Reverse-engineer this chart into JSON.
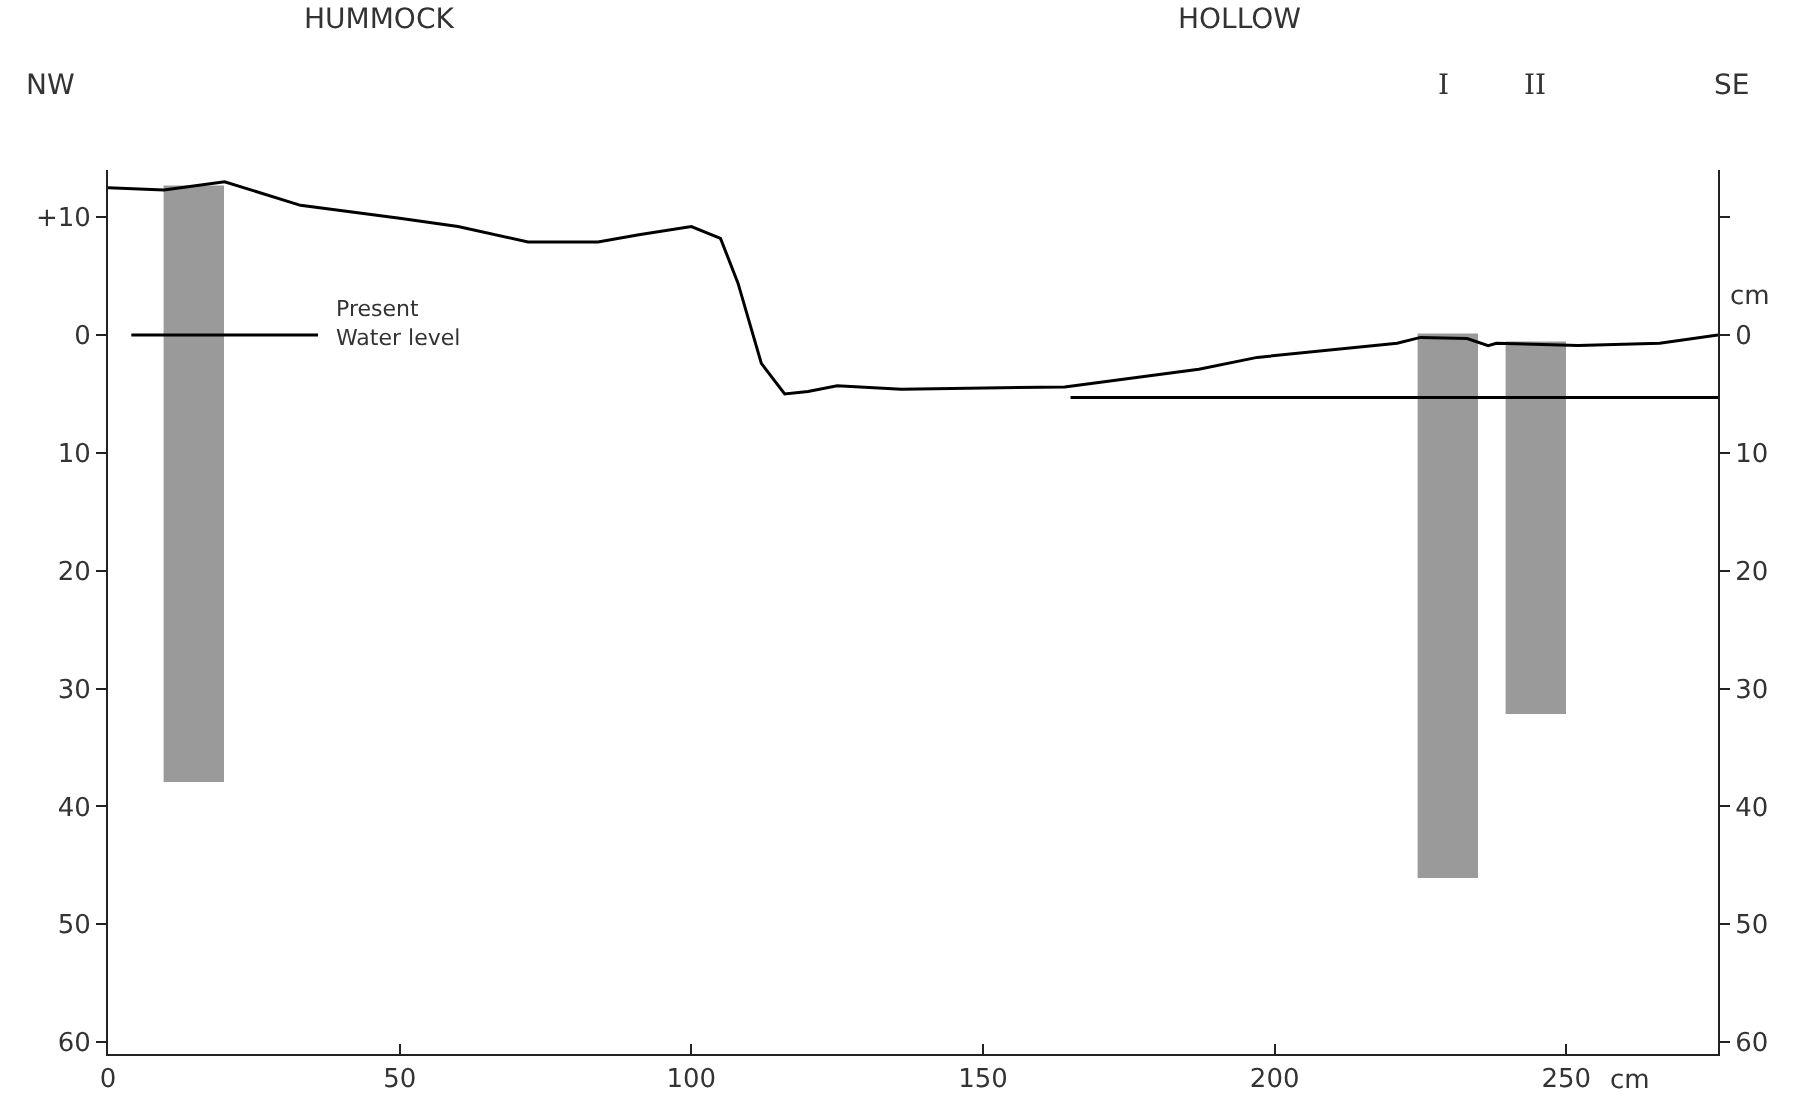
{
  "chart_data": {
    "type": "line",
    "xlabel": "cm",
    "y2label": "cm",
    "xlim": [
      0,
      276
    ],
    "xticks": [
      0,
      50,
      100,
      150,
      200,
      250
    ],
    "ylim": [
      61,
      -14
    ],
    "yticks": [
      {
        "value": -10,
        "label": "+10"
      },
      0,
      10,
      20,
      30,
      40,
      50,
      60
    ],
    "y2lim": [
      61,
      -14
    ],
    "y2ticks": [
      {
        "value": -10,
        "label": null
      },
      0,
      10,
      20,
      30,
      40,
      50,
      60
    ],
    "grid": false,
    "marker": "none",
    "series": [
      {
        "color": "#000000",
        "x": [
          0,
          9.6,
          20,
          33,
          50,
          60,
          72,
          84,
          91,
          100,
          105,
          108,
          112,
          116,
          120,
          125,
          136,
          164,
          187,
          197,
          221,
          225,
          233,
          236.6,
          238,
          252,
          266,
          276
        ],
        "values": [
          -12.5,
          -12.3,
          -13,
          -11,
          -9.9,
          -9.2,
          -7.9,
          -7.9,
          -8.5,
          -9.2,
          -8.2,
          -4.4,
          2.4,
          5,
          4.8,
          4.3,
          4.6,
          4.4,
          2.9,
          1.9,
          0.7,
          0.2,
          0.3,
          0.9,
          0.7,
          0.9,
          0.7,
          0
        ]
      },
      {
        "color": "#000000",
        "x": [
          4,
          36
        ],
        "values": [
          0,
          0
        ]
      },
      {
        "color": "#000000",
        "x": [
          165,
          276
        ],
        "values": [
          5.3,
          5.3
        ]
      },
      {
        "type": "bar",
        "color": "#9a9a9a",
        "x": [
          15,
          230,
          245
        ],
        "base": [
          -12.5,
          0,
          0.7
        ],
        "values": [
          50.5,
          46,
          31.5
        ]
      }
    ],
    "annotations": [
      "HUMMOCK",
      "HOLLOW",
      "NW",
      "I",
      "II",
      "SE",
      {
        "text": "Present\nWater level",
        "x": 37,
        "y": 0
      }
    ]
  }
}
